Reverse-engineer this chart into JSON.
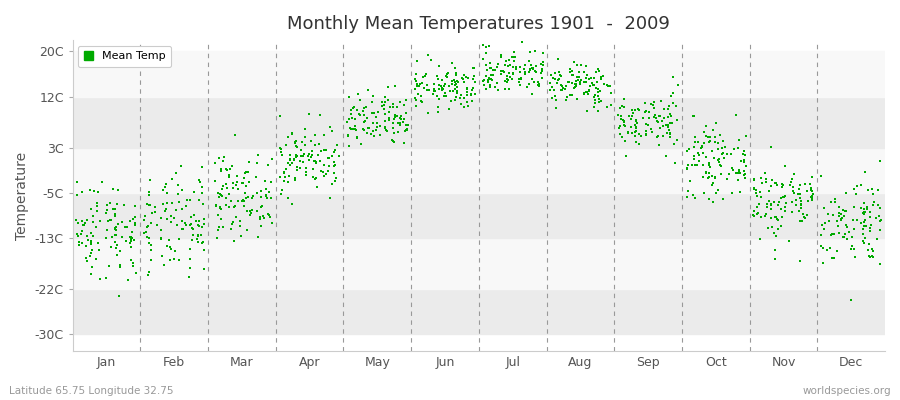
{
  "title": "Monthly Mean Temperatures 1901  -  2009",
  "ylabel": "Temperature",
  "xlabel_labels": [
    "Jan",
    "Feb",
    "Mar",
    "Apr",
    "May",
    "Jun",
    "Jul",
    "Aug",
    "Sep",
    "Oct",
    "Nov",
    "Dec"
  ],
  "yticks": [
    -30,
    -22,
    -13,
    -5,
    3,
    12,
    20
  ],
  "ytick_labels": [
    "-30C",
    "-22C",
    "-13C",
    "-5C",
    "3C",
    "12C",
    "20C"
  ],
  "ylim": [
    -33,
    22
  ],
  "xlim": [
    0,
    12
  ],
  "background_color": "#ffffff",
  "plot_bg_color": "#ffffff",
  "band_colors_h": [
    "#ebebeb",
    "#f8f8f8"
  ],
  "marker_color": "#00aa00",
  "marker": "s",
  "marker_size": 4,
  "legend_label": "Mean Temp",
  "footnote_left": "Latitude 65.75 Longitude 32.75",
  "footnote_right": "worldspecies.org",
  "monthly_means": [
    -11.5,
    -11.0,
    -5.5,
    1.0,
    7.5,
    13.5,
    16.5,
    14.0,
    7.5,
    0.5,
    -6.5,
    -10.0
  ],
  "monthly_stds": [
    4.5,
    4.5,
    3.5,
    3.0,
    2.5,
    2.0,
    2.0,
    2.0,
    2.5,
    3.0,
    3.5,
    4.0
  ],
  "n_years": 109,
  "seed": 42,
  "dashed_line_color": "#999999",
  "title_color": "#333333",
  "footnote_color": "#999999"
}
